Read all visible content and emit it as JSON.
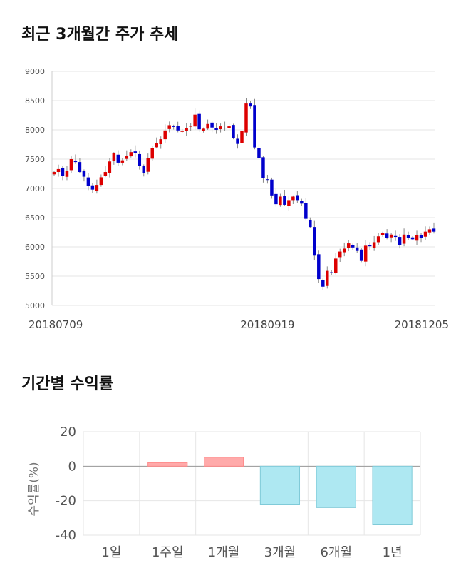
{
  "sections": {
    "price_title": "최근 3개월간 주가 추세",
    "returns_title": "기간별 수익률"
  },
  "colors": {
    "up": "#dd0000",
    "down": "#0000cc",
    "wick": "#888888",
    "grid": "#e6e6e6",
    "positive_bar": "#ffaaaa",
    "negative_bar": "#aee8f2"
  },
  "chart_data": [
    {
      "type": "candlestick",
      "title": "최근 3개월간 주가 추세",
      "ylim": [
        5000,
        9000
      ],
      "yticks": [
        5000,
        5500,
        6000,
        6500,
        7000,
        7500,
        8000,
        8500,
        9000
      ],
      "x_tick_labels": [
        "20180709",
        "20180919",
        "20181205"
      ],
      "x_tick_index": [
        0,
        50,
        98
      ],
      "grid": true,
      "closes": [
        7280,
        7330,
        7210,
        7300,
        7500,
        7450,
        7280,
        7200,
        7040,
        6980,
        7060,
        7190,
        7280,
        7460,
        7600,
        7440,
        7480,
        7560,
        7620,
        7610,
        7390,
        7260,
        7520,
        7690,
        7780,
        7840,
        7990,
        8080,
        8050,
        7990,
        7980,
        8030,
        8070,
        8260,
        8010,
        8020,
        8100,
        8040,
        8000,
        8060,
        8030,
        8060,
        7860,
        7760,
        7980,
        8450,
        8400,
        7700,
        7520,
        7180,
        7150,
        6880,
        6730,
        6860,
        6720,
        6800,
        6860,
        6800,
        6740,
        6480,
        6340,
        5850,
        5450,
        5320,
        5590,
        5550,
        5800,
        5920,
        5970,
        6060,
        5990,
        5930,
        5760,
        6020,
        6010,
        6080,
        6180,
        6240,
        6150,
        6210,
        6170,
        6030,
        6210,
        6150,
        6130,
        6200,
        6150,
        6260,
        6300,
        6260
      ]
    },
    {
      "type": "bar",
      "title": "기간별 수익률",
      "ylabel": "수익률(%)",
      "categories": [
        "1일",
        "1주일",
        "1개월",
        "3개월",
        "6개월",
        "1년"
      ],
      "values": [
        0,
        2.1,
        5.2,
        -22,
        -24,
        -34
      ],
      "ylim": [
        -40,
        20
      ],
      "yticks": [
        20,
        0,
        -20,
        -40
      ],
      "grid": true
    }
  ]
}
